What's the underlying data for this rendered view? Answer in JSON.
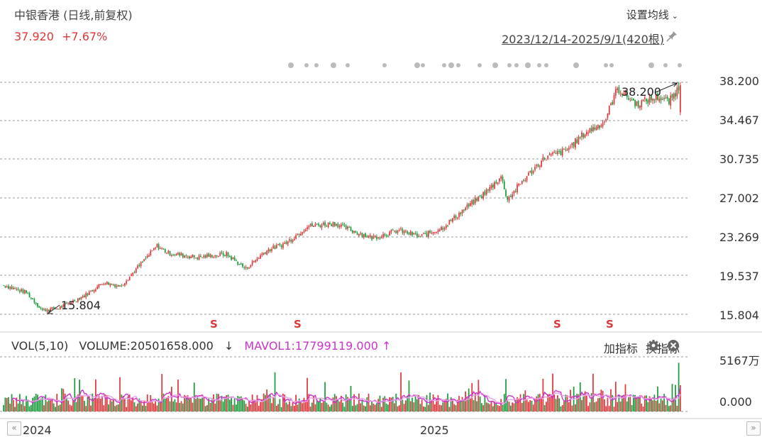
{
  "header": {
    "title": "中银香港 (日线,前复权)",
    "price": "37.920",
    "change": "+7.67%",
    "ma_setting_label": "设置均线",
    "range_label": "2023/12/14-2025/9/1(420根)"
  },
  "price_axis": [
    "38.200",
    "34.467",
    "30.735",
    "27.002",
    "23.269",
    "19.537",
    "15.804"
  ],
  "annotations": {
    "high": "38.200",
    "low": "15.804",
    "signal_mark": "S"
  },
  "volume_panel": {
    "label": "VOL(5,10)",
    "volume_text": "VOLUME:20501658.000",
    "volume_arrow": "↓",
    "mavol_text": "MAVOL1:17799119.000",
    "mavol_arrow": "↑",
    "add_indicator": "加指标",
    "switch_indicator": "换指标",
    "axis_top": "5167万",
    "axis_bottom": "0.000"
  },
  "x_axis": [
    "2024",
    "2025"
  ],
  "colors": {
    "up": "#e0363a",
    "down": "#1a9a3a",
    "ma": "#cc33cc",
    "grid": "#999999"
  },
  "chart_data": {
    "type": "candlestick",
    "series_anchors_close": [
      [
        0,
        18.6
      ],
      [
        14,
        17.9
      ],
      [
        24,
        16.2
      ],
      [
        34,
        16.4
      ],
      [
        50,
        17.6
      ],
      [
        62,
        18.9
      ],
      [
        72,
        18.5
      ],
      [
        80,
        19.8
      ],
      [
        95,
        22.4
      ],
      [
        102,
        21.7
      ],
      [
        120,
        21.3
      ],
      [
        138,
        21.6
      ],
      [
        150,
        20.2
      ],
      [
        162,
        21.9
      ],
      [
        175,
        22.7
      ],
      [
        188,
        24.3
      ],
      [
        205,
        24.6
      ],
      [
        215,
        23.9
      ],
      [
        228,
        23.2
      ],
      [
        245,
        23.9
      ],
      [
        258,
        23.3
      ],
      [
        272,
        24.2
      ],
      [
        285,
        25.9
      ],
      [
        300,
        27.8
      ],
      [
        308,
        29.1
      ],
      [
        312,
        26.9
      ],
      [
        322,
        28.8
      ],
      [
        335,
        30.9
      ],
      [
        348,
        31.6
      ],
      [
        360,
        33.3
      ],
      [
        372,
        34.4
      ],
      [
        380,
        37.6
      ],
      [
        392,
        36.1
      ],
      [
        405,
        36.8
      ],
      [
        412,
        36.3
      ],
      [
        419,
        37.92
      ]
    ],
    "high": 38.2,
    "low": 15.804,
    "candle_count": 420,
    "volume_max": "5167万"
  }
}
